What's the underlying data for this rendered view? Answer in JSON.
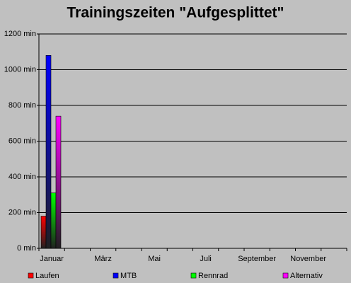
{
  "chart_data": {
    "type": "bar",
    "title": "Trainingszeiten \"Aufgesplittet\"",
    "categories": [
      "Januar",
      null,
      "März",
      null,
      "Mai",
      null,
      "Juli",
      null,
      "September",
      null,
      "November",
      null
    ],
    "series": [
      {
        "name": "Laufen",
        "color": "#ff0000",
        "values": [
          180,
          0,
          0,
          0,
          0,
          0,
          0,
          0,
          0,
          0,
          0,
          0
        ]
      },
      {
        "name": "MTB",
        "color": "#0000ff",
        "values": [
          1080,
          0,
          0,
          0,
          0,
          0,
          0,
          0,
          0,
          0,
          0,
          0
        ]
      },
      {
        "name": "Rennrad",
        "color": "#00ff00",
        "values": [
          310,
          0,
          0,
          0,
          0,
          0,
          0,
          0,
          0,
          0,
          0,
          0
        ]
      },
      {
        "name": "Alternativ",
        "color": "#ff00ff",
        "values": [
          740,
          0,
          0,
          0,
          0,
          0,
          0,
          0,
          0,
          0,
          0,
          0
        ]
      }
    ],
    "ylim": [
      0,
      1200
    ],
    "yticks": [
      {
        "value": 0,
        "label": "0 min"
      },
      {
        "value": 200,
        "label": "200 min"
      },
      {
        "value": 400,
        "label": "400 min"
      },
      {
        "value": 600,
        "label": "600 min"
      },
      {
        "value": 800,
        "label": "800 min"
      },
      {
        "value": 1000,
        "label": "1000 min"
      },
      {
        "value": 1200,
        "label": "1200 min"
      }
    ],
    "grid": true,
    "legend": "bottom"
  }
}
